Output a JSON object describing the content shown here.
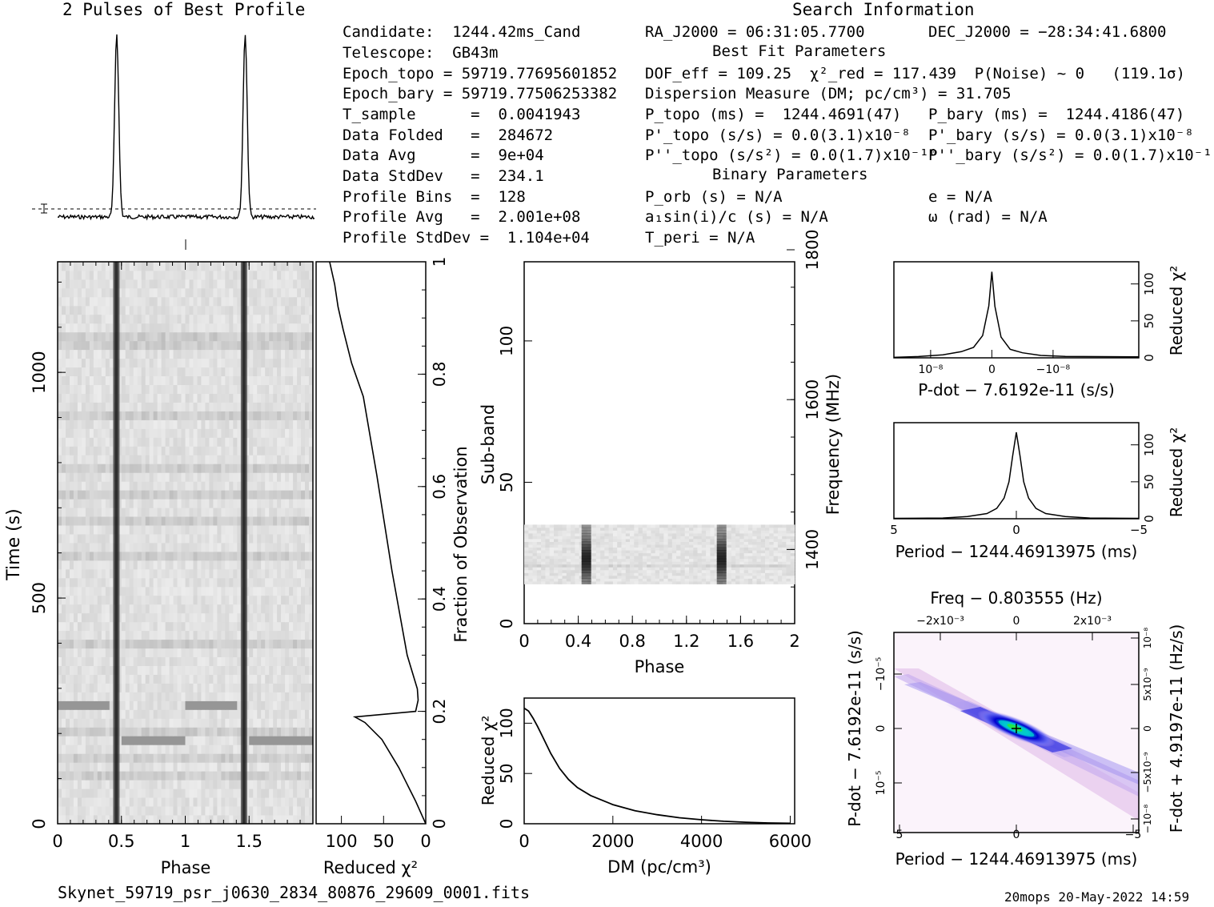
{
  "titles": {
    "profile": "2 Pulses of Best Profile",
    "search": "Search Information",
    "best_fit": "Best Fit Parameters",
    "binary": "Binary Parameters"
  },
  "info_col1": [
    "Candidate:  1244.42ms_Cand",
    "Telescope:  GB43m",
    "Epoch_topo = 59719.77695601852",
    "Epoch_bary = 59719.77506253382",
    "T_sample      =  0.0041943",
    "Data Folded   =  284672",
    "Data Avg      =  9e+04",
    "Data StdDev   =  234.1",
    "Profile Bins  =  128",
    "Profile Avg   =  2.001e+08",
    "Profile StdDev =  1.104e+04"
  ],
  "info_col2": [
    "RA_J2000 = 06:31:05.7700",
    "DOF_eff = 109.25  χ²_red = 117.439  P(Noise) ~ 0   (119.1σ)",
    "Dispersion Measure (DM; pc/cm³) = 31.705",
    "P_topo (ms) =  1244.4691(47)",
    "P'_topo (s/s) = 0.0(3.1)x10⁻⁸",
    "P''_topo (s/s²) = 0.0(1.7)x10⁻¹⁰",
    "P_orb (s) = N/A",
    "a₁sin(i)/c (s) = N/A",
    "T_peri = N/A"
  ],
  "info_col3": [
    "DEC_J2000 = −28:34:41.6800",
    "P_bary (ms) =  1244.4186(47)",
    "P'_bary (s/s) = 0.0(3.1)x10⁻⁸",
    "P''_bary (s/s²) = 0.0(1.7)x10⁻¹⁰",
    "e = N/A",
    "ω (rad) = N/A"
  ],
  "footer": {
    "filename": "Skynet_59719_psr_j0630_2834_80876_29609_0001.fits",
    "stamp": "20mops 20-May-2022 14:59"
  },
  "axis_labels": {
    "time_y": "Time (s)",
    "phase_x1": "Phase",
    "redchi_x": "Reduced χ²",
    "frac_obs": "Fraction of Observation",
    "subband": "Sub-band",
    "phase_x2": "Phase",
    "frequency": "Frequency (MHz)",
    "redchi_y": "Reduced χ²",
    "dm_x": "DM (pc/cm³)",
    "pdot_x": "P-dot − 7.6192e-11 (s/s)",
    "period_x1": "Period − 1244.46913975 (ms)",
    "period_x2": "Period − 1244.46913975 (ms)",
    "pdot_y": "P-dot − 7.6192e-11 (s/s)",
    "fdot_y": "F-dot + 4.9197e-11 (Hz/s)",
    "freq_top": "Freq − 0.803555 (Hz)",
    "redchi_r1": "Reduced χ²",
    "redchi_r2": "Reduced χ²"
  },
  "chart_data": [
    {
      "type": "line",
      "title": "2 Pulses of Best Profile",
      "x_range": [
        0,
        2
      ],
      "pulse_phases": [
        0.46,
        1.46
      ],
      "baseline_level": 0.12,
      "peak_level": 1.0,
      "grid": false
    },
    {
      "type": "heatmap",
      "name": "time-phase",
      "xlabel": "Phase",
      "ylabel": "Time (s)",
      "x_range": [
        0,
        2
      ],
      "y_range": [
        0,
        1245
      ],
      "x_ticks": [
        "0",
        "0.5",
        "1",
        "1.5"
      ],
      "y_ticks": [
        "0",
        "500",
        "1000"
      ],
      "pulse_phases": [
        0.46,
        1.46
      ],
      "bright_rows_s": [
        188,
        262
      ]
    },
    {
      "type": "line",
      "name": "reduced-chi2-vs-time",
      "xlabel": "Reduced χ²",
      "ylabel": "Fraction of Observation",
      "x_ticks": [
        "100",
        "50",
        "0"
      ],
      "y_ticks": [
        "0",
        "0.2",
        "0.4",
        "0.6",
        "0.8",
        "1"
      ],
      "x_range": [
        130,
        0
      ],
      "points": [
        [
          0,
          0
        ],
        [
          12,
          0.04
        ],
        [
          32,
          0.1
        ],
        [
          52,
          0.15
        ],
        [
          72,
          0.18
        ],
        [
          84,
          0.19
        ],
        [
          12,
          0.2
        ],
        [
          9,
          0.22
        ],
        [
          10,
          0.24
        ],
        [
          22,
          0.3
        ],
        [
          40,
          0.45
        ],
        [
          58,
          0.62
        ],
        [
          74,
          0.76
        ],
        [
          88,
          0.82
        ],
        [
          98,
          0.88
        ],
        [
          104,
          0.92
        ],
        [
          108,
          0.96
        ],
        [
          114,
          1.0
        ]
      ]
    },
    {
      "type": "heatmap",
      "name": "subband-phase",
      "xlabel": "Phase",
      "ylabel": "Sub-band",
      "right_label": "Frequency (MHz)",
      "x_range": [
        0,
        2
      ],
      "y_range": [
        0,
        128
      ],
      "x_ticks": [
        "0",
        "0.4",
        "0.8",
        "1.2",
        "1.6",
        "2"
      ],
      "y_ticks": [
        "0",
        "50",
        "100"
      ],
      "freq_ticks": [
        "1400",
        "1600",
        "1800"
      ],
      "pulse_phases": [
        0.46,
        1.46
      ],
      "active_subbands": [
        14,
        35
      ]
    },
    {
      "type": "line",
      "name": "dm-curve",
      "xlabel": "DM (pc/cm³)",
      "ylabel": "Reduced χ²",
      "x_range": [
        0,
        6100
      ],
      "y_range": [
        0,
        125
      ],
      "x_ticks": [
        "0",
        "2000",
        "4000",
        "6000"
      ],
      "y_ticks": [
        "0",
        "50",
        "100"
      ],
      "points": [
        [
          0,
          115
        ],
        [
          100,
          112
        ],
        [
          200,
          105
        ],
        [
          300,
          97
        ],
        [
          400,
          88
        ],
        [
          600,
          70
        ],
        [
          800,
          55
        ],
        [
          1000,
          44
        ],
        [
          1200,
          36
        ],
        [
          1500,
          28
        ],
        [
          2000,
          19
        ],
        [
          2500,
          13
        ],
        [
          3000,
          9
        ],
        [
          3500,
          6
        ],
        [
          4000,
          4
        ],
        [
          4500,
          2.5
        ],
        [
          5000,
          1.5
        ],
        [
          5500,
          0.8
        ],
        [
          6000,
          0.5
        ]
      ]
    },
    {
      "type": "line",
      "name": "pdot-curve",
      "xlabel": "P-dot − 7.6192e-11 (s/s)",
      "ylabel": "Reduced χ²",
      "x_ticks": [
        "10⁻⁸",
        "0",
        "−10⁻⁸"
      ],
      "y_ticks": [
        "0",
        "50",
        "100"
      ],
      "x_range": [
        1.6e-08,
        -2.4e-08
      ],
      "y_range": [
        0,
        130
      ],
      "points": [
        [
          1.6e-08,
          1
        ],
        [
          1.2e-08,
          2
        ],
        [
          8e-09,
          4
        ],
        [
          5e-09,
          8
        ],
        [
          3e-09,
          14
        ],
        [
          1.5e-09,
          30
        ],
        [
          5e-10,
          70
        ],
        [
          0,
          117
        ],
        [
          -5e-10,
          70
        ],
        [
          -1.5e-09,
          28
        ],
        [
          -3e-09,
          12
        ],
        [
          -5e-09,
          7
        ],
        [
          -8e-09,
          3
        ],
        [
          -1.2e-08,
          2
        ],
        [
          -2.4e-08,
          1
        ]
      ]
    },
    {
      "type": "line",
      "name": "period-curve",
      "xlabel": "Period − 1244.46913975 (ms)",
      "ylabel": "Reduced χ²",
      "x_ticks": [
        "5",
        "0",
        "−5"
      ],
      "y_ticks": [
        "0",
        "50",
        "100"
      ],
      "x_range": [
        5,
        -5
      ],
      "y_range": [
        0,
        130
      ],
      "points": [
        [
          5,
          0.5
        ],
        [
          3,
          1
        ],
        [
          2,
          3
        ],
        [
          1.2,
          7
        ],
        [
          0.8,
          14
        ],
        [
          0.5,
          28
        ],
        [
          0.3,
          50
        ],
        [
          0.15,
          85
        ],
        [
          0,
          117
        ],
        [
          -0.15,
          85
        ],
        [
          -0.3,
          50
        ],
        [
          -0.5,
          28
        ],
        [
          -0.8,
          14
        ],
        [
          -1.2,
          7
        ],
        [
          -2,
          3
        ],
        [
          -3,
          1
        ],
        [
          -5,
          0.5
        ]
      ]
    },
    {
      "type": "heatmap",
      "name": "period-pdot",
      "xlabel": "Period − 1244.46913975 (ms)",
      "ylabel": "P-dot − 7.6192e-11 (s/s)",
      "top_label": "Freq − 0.803555 (Hz)",
      "right_label": "F-dot + 4.9197e-11 (Hz/s)",
      "x_ticks": [
        "5",
        "0",
        "−5"
      ],
      "y_ticks": [
        "−10⁻⁵",
        "0",
        "10⁻⁵"
      ],
      "top_ticks": [
        "−2x10⁻³",
        "0",
        "2x10⁻³"
      ],
      "right_ticks": [
        "10⁻⁸",
        "5x10⁻⁹",
        "0",
        "−5x10⁻⁹",
        "−10⁻⁸"
      ],
      "colors": [
        "#ffffff",
        "#f1d8f1",
        "#d9b5f0",
        "#6a6ff5",
        "#0000d0",
        "#00c8d0",
        "#21e84a",
        "#f5b000"
      ]
    }
  ]
}
